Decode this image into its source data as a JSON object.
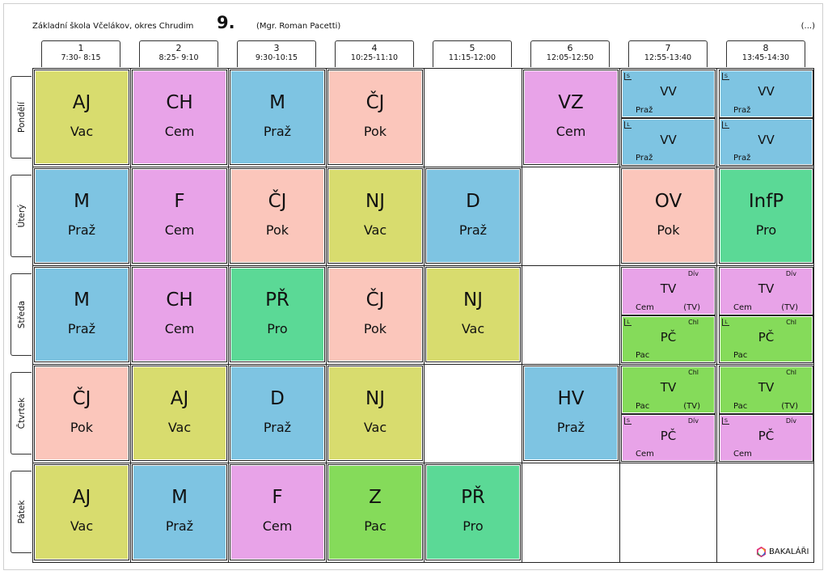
{
  "header": {
    "school": "Základní škola Včelákov, okres Chrudim",
    "class": "9.",
    "teacher": "(Mgr. Roman Pacetti)",
    "more": "(...)"
  },
  "periods": [
    {
      "num": "1",
      "time": "7:30- 8:15"
    },
    {
      "num": "2",
      "time": "8:25- 9:10"
    },
    {
      "num": "3",
      "time": "9:30-10:15"
    },
    {
      "num": "4",
      "time": "10:25-11:10"
    },
    {
      "num": "5",
      "time": "11:15-12:00"
    },
    {
      "num": "6",
      "time": "12:05-12:50"
    },
    {
      "num": "7",
      "time": "12:55-13:40"
    },
    {
      "num": "8",
      "time": "13:45-14:30"
    }
  ],
  "days": [
    "Pondělí",
    "Úterý",
    "Středa",
    "Čtvrtek",
    "Pátek"
  ],
  "lessons": {
    "mon": {
      "p1": {
        "subject": "AJ",
        "teacher": "Vac"
      },
      "p2": {
        "subject": "CH",
        "teacher": "Cem"
      },
      "p3": {
        "subject": "M",
        "teacher": "Praž"
      },
      "p4": {
        "subject": "ČJ",
        "teacher": "Pok"
      },
      "p6": {
        "subject": "VZ",
        "teacher": "Cem"
      },
      "p7a": {
        "flag": "S",
        "subject": "VV",
        "teacher": "Praž"
      },
      "p7b": {
        "flag": "L",
        "subject": "VV",
        "teacher": "Praž"
      },
      "p8a": {
        "flag": "S",
        "subject": "VV",
        "teacher": "Praž"
      },
      "p8b": {
        "flag": "L",
        "subject": "VV",
        "teacher": "Praž"
      }
    },
    "tue": {
      "p1": {
        "subject": "M",
        "teacher": "Praž"
      },
      "p2": {
        "subject": "F",
        "teacher": "Cem"
      },
      "p3": {
        "subject": "ČJ",
        "teacher": "Pok"
      },
      "p4": {
        "subject": "NJ",
        "teacher": "Vac"
      },
      "p5": {
        "subject": "D",
        "teacher": "Praž"
      },
      "p7": {
        "subject": "OV",
        "teacher": "Pok"
      },
      "p8": {
        "subject": "InfP",
        "teacher": "Pro"
      }
    },
    "wed": {
      "p1": {
        "subject": "M",
        "teacher": "Praž"
      },
      "p2": {
        "subject": "CH",
        "teacher": "Cem"
      },
      "p3": {
        "subject": "PŘ",
        "teacher": "Pro"
      },
      "p4": {
        "subject": "ČJ",
        "teacher": "Pok"
      },
      "p5": {
        "subject": "NJ",
        "teacher": "Vac"
      },
      "p7a": {
        "group": "Dív",
        "subject": "TV",
        "teacher": "Cem",
        "room": "(TV)"
      },
      "p7b": {
        "flag": "L",
        "group": "Chl",
        "subject": "PČ",
        "teacher": "Pac"
      },
      "p8a": {
        "group": "Dív",
        "subject": "TV",
        "teacher": "Cem",
        "room": "(TV)"
      },
      "p8b": {
        "flag": "L",
        "group": "Chl",
        "subject": "PČ",
        "teacher": "Pac"
      }
    },
    "thu": {
      "p1": {
        "subject": "ČJ",
        "teacher": "Pok"
      },
      "p2": {
        "subject": "AJ",
        "teacher": "Vac"
      },
      "p3": {
        "subject": "D",
        "teacher": "Praž"
      },
      "p4": {
        "subject": "NJ",
        "teacher": "Vac"
      },
      "p6": {
        "subject": "HV",
        "teacher": "Praž"
      },
      "p7a": {
        "group": "Chl",
        "subject": "TV",
        "teacher": "Pac",
        "room": "(TV)"
      },
      "p7b": {
        "flag": "S",
        "group": "Dív",
        "subject": "PČ",
        "teacher": "Cem"
      },
      "p8a": {
        "group": "Chl",
        "subject": "TV",
        "teacher": "Pac",
        "room": "(TV)"
      },
      "p8b": {
        "flag": "S",
        "group": "Dív",
        "subject": "PČ",
        "teacher": "Cem"
      }
    },
    "fri": {
      "p1": {
        "subject": "AJ",
        "teacher": "Vac"
      },
      "p2": {
        "subject": "M",
        "teacher": "Praž"
      },
      "p3": {
        "subject": "F",
        "teacher": "Cem"
      },
      "p4": {
        "subject": "Z",
        "teacher": "Pac"
      },
      "p5": {
        "subject": "PŘ",
        "teacher": "Pro"
      }
    }
  },
  "colors": {
    "yellow": "#d8dc6e",
    "pink": "#e8a3e8",
    "blue": "#7ec4e2",
    "salmon": "#fbc6bb",
    "green": "#5bd996",
    "lime": "#85db5a"
  },
  "logo": {
    "icon": "bakalari-logo-icon",
    "text": "BAKALÁŘI"
  }
}
